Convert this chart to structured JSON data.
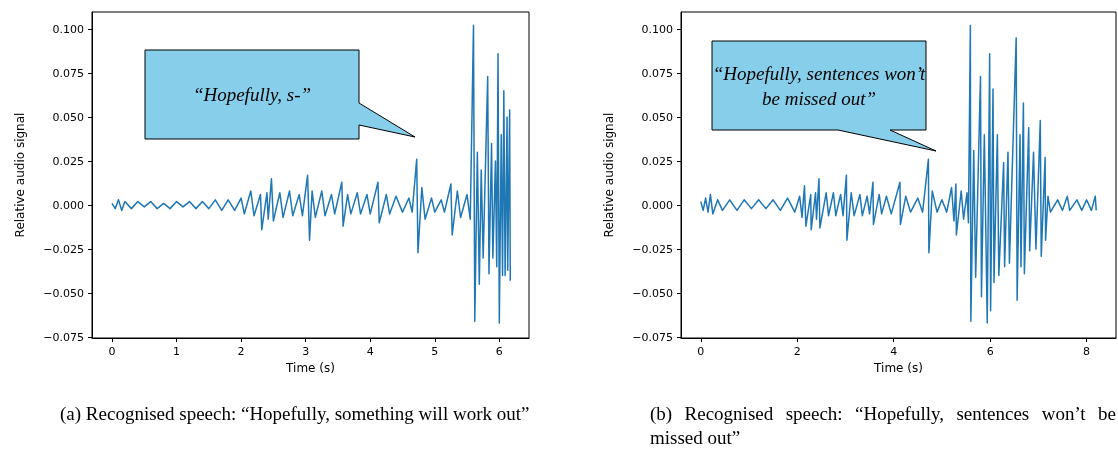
{
  "chart_data": [
    {
      "type": "line",
      "xlabel": "Time (s)",
      "ylabel": "Relative audio signal",
      "xlim": [
        -0.31,
        6.46
      ],
      "ylim": [
        -0.0755,
        0.1097
      ],
      "xticks": [
        0,
        1,
        2,
        3,
        4,
        5,
        6
      ],
      "yticks": [
        {
          "value": -0.075,
          "label": "−0.075"
        },
        {
          "value": -0.05,
          "label": "−0.050"
        },
        {
          "value": -0.025,
          "label": "−0.025"
        },
        {
          "value": 0,
          "label": "0.000"
        },
        {
          "value": 0.025,
          "label": "0.025"
        },
        {
          "value": 0.05,
          "label": "0.050"
        },
        {
          "value": 0.075,
          "label": "0.075"
        },
        {
          "value": 0.1,
          "label": "0.100"
        }
      ],
      "x": [
        0.0,
        0.05,
        0.1,
        0.15,
        0.2,
        0.3,
        0.4,
        0.5,
        0.6,
        0.7,
        0.8,
        0.9,
        1.0,
        1.1,
        1.2,
        1.3,
        1.4,
        1.5,
        1.6,
        1.7,
        1.8,
        1.9,
        2.0,
        2.05,
        2.15,
        2.2,
        2.3,
        2.32,
        2.4,
        2.42,
        2.47,
        2.5,
        2.6,
        2.65,
        2.75,
        2.8,
        2.9,
        2.95,
        3.03,
        3.06,
        3.1,
        3.15,
        3.25,
        3.3,
        3.4,
        3.45,
        3.56,
        3.58,
        3.65,
        3.7,
        3.8,
        3.85,
        3.95,
        4.0,
        4.12,
        4.14,
        4.25,
        4.3,
        4.4,
        4.5,
        4.6,
        4.65,
        4.72,
        4.74,
        4.8,
        4.85,
        4.95,
        5.0,
        5.1,
        5.15,
        5.25,
        5.27,
        5.35,
        5.4,
        5.5,
        5.55,
        5.6,
        5.62,
        5.66,
        5.69,
        5.72,
        5.75,
        5.82,
        5.84,
        5.88,
        5.9,
        5.94,
        5.96,
        5.98,
        6.0,
        6.03,
        6.05,
        6.07,
        6.09,
        6.12,
        6.13,
        6.16,
        6.17
      ],
      "series": [
        {
          "color": "#1f77b4",
          "values": [
            0.001,
            -0.002,
            0.003,
            -0.003,
            0.002,
            -0.002,
            0.002,
            -0.001,
            0.002,
            -0.002,
            0.001,
            -0.002,
            0.002,
            -0.001,
            0.002,
            -0.002,
            0.002,
            -0.002,
            0.003,
            -0.003,
            0.003,
            -0.003,
            0.004,
            -0.005,
            0.008,
            -0.006,
            0.006,
            -0.014,
            0.007,
            -0.008,
            0.015,
            -0.009,
            0.007,
            -0.007,
            0.008,
            -0.006,
            0.006,
            -0.006,
            0.017,
            -0.02,
            0.008,
            -0.007,
            0.008,
            -0.006,
            0.006,
            -0.005,
            0.013,
            -0.012,
            0.006,
            -0.005,
            0.007,
            -0.005,
            0.006,
            -0.005,
            0.013,
            -0.01,
            0.006,
            -0.005,
            0.005,
            -0.004,
            0.004,
            -0.004,
            0.026,
            -0.027,
            0.01,
            -0.008,
            0.004,
            -0.004,
            0.003,
            -0.004,
            0.012,
            -0.017,
            0.008,
            -0.007,
            0.006,
            -0.008,
            0.102,
            -0.066,
            0.03,
            -0.045,
            0.02,
            -0.03,
            0.073,
            -0.039,
            0.035,
            -0.03,
            0.025,
            -0.035,
            0.086,
            -0.067,
            0.04,
            -0.04,
            0.065,
            -0.04,
            0.05,
            -0.037,
            0.054,
            -0.043
          ]
        }
      ],
      "annotations": [
        "“Hopefully, s-”",
        "(a) Recognised speech: “Hopefully, something will work out”"
      ]
    },
    {
      "type": "line",
      "xlabel": "Time (s)",
      "ylabel": "Relative audio signal",
      "xlim": [
        -0.41,
        8.61
      ],
      "ylim": [
        -0.0755,
        0.1097
      ],
      "xticks": [
        0,
        2,
        4,
        6,
        8
      ],
      "yticks": [
        {
          "value": -0.075,
          "label": "−0.075"
        },
        {
          "value": -0.05,
          "label": "−0.050"
        },
        {
          "value": -0.025,
          "label": "−0.025"
        },
        {
          "value": 0,
          "label": "0.000"
        },
        {
          "value": 0.025,
          "label": "0.025"
        },
        {
          "value": 0.05,
          "label": "0.050"
        },
        {
          "value": 0.075,
          "label": "0.075"
        },
        {
          "value": 0.1,
          "label": "0.100"
        }
      ],
      "x": [
        0.0,
        0.05,
        0.1,
        0.15,
        0.2,
        0.25,
        0.35,
        0.45,
        0.6,
        0.75,
        0.9,
        1.05,
        1.2,
        1.35,
        1.5,
        1.65,
        1.8,
        1.95,
        2.05,
        2.1,
        2.15,
        2.18,
        2.28,
        2.29,
        2.38,
        2.4,
        2.45,
        2.47,
        2.6,
        2.65,
        2.75,
        2.8,
        2.9,
        2.95,
        3.02,
        3.03,
        3.12,
        3.18,
        3.3,
        3.35,
        3.45,
        3.5,
        3.57,
        3.58,
        3.7,
        3.75,
        3.85,
        3.95,
        4.13,
        4.14,
        4.25,
        4.35,
        4.5,
        4.6,
        4.72,
        4.73,
        4.8,
        4.9,
        5.0,
        5.1,
        5.2,
        5.25,
        5.29,
        5.3,
        5.4,
        5.45,
        5.52,
        5.55,
        5.59,
        5.6,
        5.66,
        5.7,
        5.8,
        5.82,
        5.88,
        5.94,
        5.99,
        6.01,
        6.06,
        6.08,
        6.15,
        6.18,
        6.28,
        6.3,
        6.37,
        6.4,
        6.54,
        6.56,
        6.62,
        6.64,
        6.69,
        6.71,
        6.8,
        6.82,
        6.9,
        6.95,
        7.04,
        7.06,
        7.14,
        7.15,
        7.2,
        7.25,
        7.4,
        7.5,
        7.6,
        7.65,
        7.8,
        7.9,
        8.0,
        8.1,
        8.18,
        8.2
      ],
      "series": [
        {
          "color": "#1f77b4",
          "values": [
            0.002,
            -0.003,
            0.004,
            -0.004,
            0.006,
            -0.005,
            0.003,
            -0.003,
            0.003,
            -0.003,
            0.003,
            -0.002,
            0.003,
            -0.002,
            0.003,
            -0.003,
            0.004,
            -0.004,
            0.005,
            -0.007,
            0.011,
            -0.012,
            0.006,
            -0.014,
            0.007,
            -0.008,
            0.015,
            -0.013,
            0.007,
            -0.006,
            0.007,
            -0.006,
            0.006,
            -0.006,
            0.017,
            -0.02,
            0.007,
            -0.006,
            0.006,
            -0.006,
            0.005,
            -0.005,
            0.013,
            -0.011,
            0.006,
            -0.005,
            0.005,
            -0.005,
            0.013,
            -0.011,
            0.005,
            -0.004,
            0.004,
            -0.004,
            0.026,
            -0.027,
            0.008,
            -0.004,
            0.003,
            -0.004,
            0.01,
            -0.009,
            0.012,
            -0.017,
            0.008,
            -0.008,
            0.007,
            -0.01,
            0.102,
            -0.066,
            0.031,
            -0.041,
            0.073,
            -0.052,
            0.04,
            -0.067,
            0.086,
            -0.06,
            0.066,
            -0.044,
            0.04,
            -0.04,
            0.024,
            -0.035,
            0.03,
            -0.033,
            0.095,
            -0.054,
            0.04,
            -0.035,
            0.058,
            -0.039,
            0.044,
            -0.026,
            0.03,
            -0.025,
            0.048,
            -0.029,
            0.027,
            -0.02,
            0.005,
            -0.004,
            0.003,
            -0.003,
            0.005,
            -0.003,
            0.003,
            -0.003,
            0.003,
            -0.003,
            0.005,
            -0.003
          ]
        }
      ],
      "annotations": [
        "“Hopefully, sentences won’t be missed out”",
        "(b) Recognised speech: “Hopefully, sentences won’t be missed out”"
      ]
    }
  ]
}
